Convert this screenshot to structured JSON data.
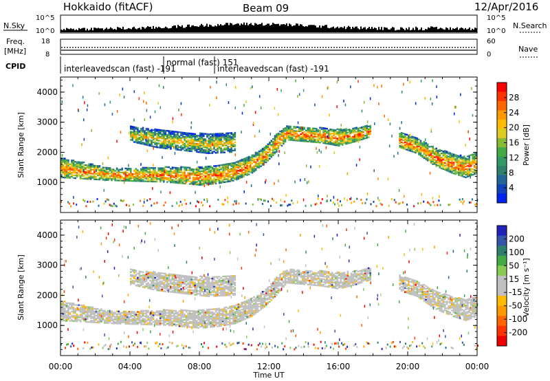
{
  "header": {
    "title": "Hokkaido (fitACF)",
    "beam": "Beam 09",
    "date": "12/Apr/2016"
  },
  "strips": {
    "nsky_label": "N.Sky",
    "nsky_ticks": [
      "10^5",
      "10^0"
    ],
    "nsearch_label": "N.Search",
    "nsearch_ticks": [
      "10^5",
      "10^0"
    ],
    "freq_label_line1": "Freq.",
    "freq_label_line2": "[MHz]",
    "freq_ticks": [
      "18",
      "8"
    ],
    "nave_label": "Nave",
    "nave_ticks": [
      "60",
      "0"
    ],
    "cpid_label": "CPID",
    "cpid_modes": [
      {
        "text": "interleavedscan (fast) -191"
      },
      {
        "text": "normal (fast) 151"
      },
      {
        "text": "interleavedscan (fast) -191"
      }
    ]
  },
  "chart_data": [
    {
      "type": "heatmap",
      "name": "power",
      "ylabel": "Slant Range [km]",
      "yticks": [
        1000,
        2000,
        3000,
        4000
      ],
      "ylim": [
        0,
        4500
      ],
      "xlim": [
        0,
        24
      ],
      "colorbar_label": "Power [dB]",
      "colorbar_ticks": [
        "28",
        "24",
        "20",
        "16",
        "12",
        "8",
        "4"
      ],
      "colorbar_colors": [
        "#ff0000",
        "#ff3300",
        "#ff6600",
        "#ff9900",
        "#ffbb00",
        "#ddcc22",
        "#88bb33",
        "#44aa44",
        "#339966",
        "#2f7f6f",
        "#226699",
        "#1144bb",
        "#0022ee"
      ],
      "echo_bands": [
        {
          "t": [
            0,
            3,
            6,
            8,
            9,
            10,
            11,
            11.8,
            12.4,
            13,
            15,
            16,
            17,
            17.8
          ],
          "r_low": [
            1150,
            1050,
            1000,
            900,
            950,
            1050,
            1300,
            1650,
            2000,
            2400,
            2300,
            2200,
            2350,
            2500
          ],
          "r_high": [
            1800,
            1450,
            1500,
            1500,
            1550,
            1650,
            1900,
            2200,
            2600,
            2850,
            2800,
            2750,
            2800,
            2900
          ]
        },
        {
          "t": [
            4,
            5.5,
            7,
            8.5,
            10
          ],
          "r_low": [
            2350,
            2150,
            2050,
            1950,
            2000
          ],
          "r_high": [
            2850,
            2750,
            2650,
            2600,
            2650
          ]
        },
        {
          "t": [
            19.5,
            20.5,
            21.5,
            22.5,
            23.3,
            24
          ],
          "r_low": [
            2150,
            1950,
            1550,
            1300,
            1150,
            1300
          ],
          "r_high": [
            2650,
            2450,
            2150,
            1950,
            1850,
            2000
          ]
        }
      ]
    },
    {
      "type": "heatmap",
      "name": "velocity",
      "ylabel": "Slant Range [km]",
      "yticks": [
        1000,
        2000,
        3000,
        4000
      ],
      "ylim": [
        0,
        4500
      ],
      "xlim": [
        0,
        24
      ],
      "xlabel": "Time UT",
      "xticks": [
        "00:00",
        "04:00",
        "08:00",
        "12:00",
        "16:00",
        "20:00",
        "00:00"
      ],
      "colorbar_label": "Velocity [m s⁻¹]",
      "colorbar_ticks": [
        "200",
        "100",
        "50",
        "15",
        "-15",
        "-50",
        "-100",
        "-200"
      ],
      "colorbar_colors": [
        "#2222bb",
        "#3355aa",
        "#2f7f6f",
        "#44aa44",
        "#88cc55",
        "#c0c0c0",
        "#c0c0c0",
        "#ffbb00",
        "#ff9900",
        "#ff6600",
        "#ff3300",
        "#ee0000"
      ],
      "echo_bands": [
        {
          "t": [
            0,
            3,
            6,
            8,
            9,
            10,
            11,
            11.8,
            12.4,
            13,
            15,
            16,
            17,
            17.8
          ],
          "r_low": [
            1150,
            1050,
            1000,
            900,
            950,
            1050,
            1300,
            1650,
            2000,
            2400,
            2300,
            2200,
            2350,
            2500
          ],
          "r_high": [
            1800,
            1450,
            1500,
            1500,
            1550,
            1650,
            1900,
            2200,
            2600,
            2850,
            2800,
            2750,
            2800,
            2900
          ]
        },
        {
          "t": [
            4,
            5.5,
            7,
            8.5,
            10
          ],
          "r_low": [
            2350,
            2150,
            2050,
            1950,
            2000
          ],
          "r_high": [
            2850,
            2750,
            2650,
            2600,
            2650
          ]
        },
        {
          "t": [
            19.5,
            20.5,
            21.5,
            22.5,
            23.3,
            24
          ],
          "r_low": [
            2150,
            1950,
            1550,
            1300,
            1150,
            1300
          ],
          "r_high": [
            2650,
            2450,
            2150,
            1950,
            1850,
            2000
          ]
        }
      ]
    }
  ]
}
